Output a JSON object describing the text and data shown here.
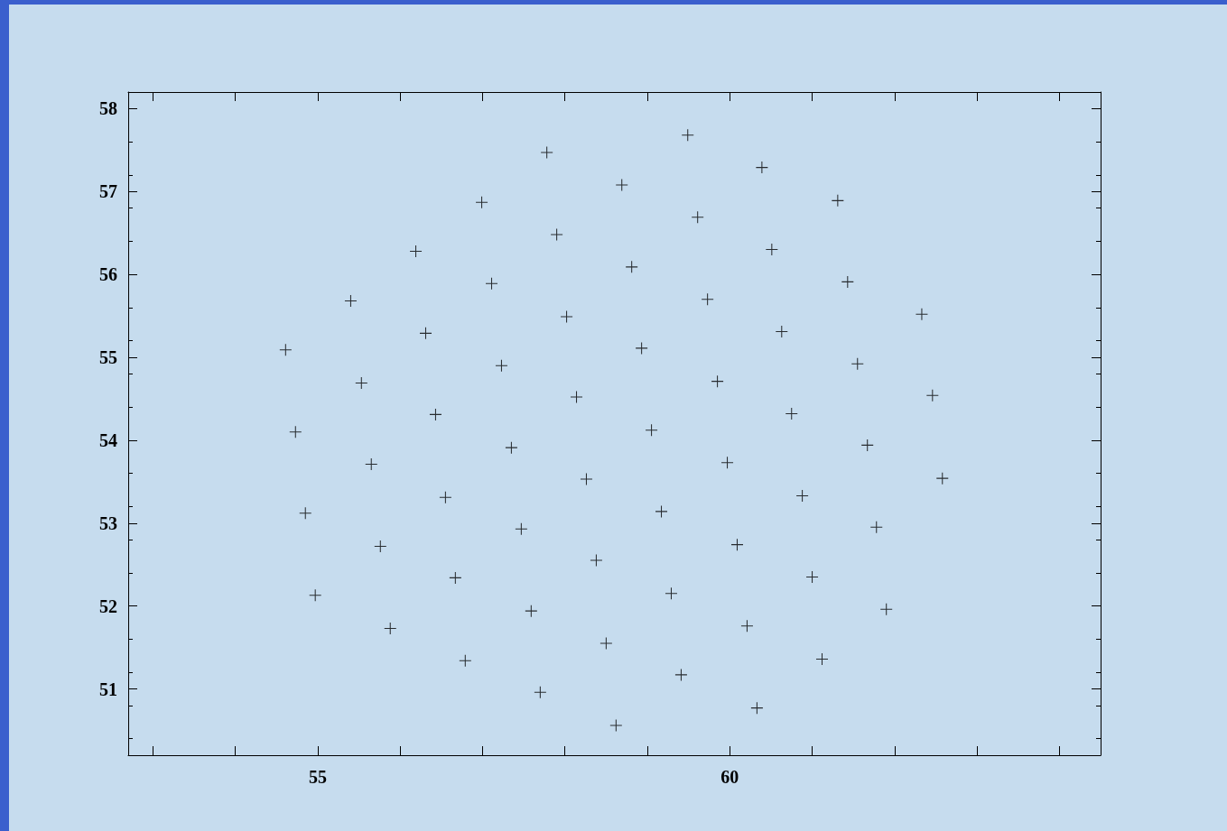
{
  "chart_data": {
    "type": "scatter",
    "marker": "cross",
    "xlim": [
      52.7,
      64.5
    ],
    "ylim": [
      50.2,
      58.2
    ],
    "xticks": [
      {
        "value": 53,
        "label": null
      },
      {
        "value": 54,
        "label": null
      },
      55,
      {
        "value": 56,
        "label": null
      },
      {
        "value": 57,
        "label": null
      },
      {
        "value": 58,
        "label": null
      },
      {
        "value": 59,
        "label": null
      },
      60,
      {
        "value": 61,
        "label": null
      },
      {
        "value": 62,
        "label": null
      },
      {
        "value": 63,
        "label": null
      },
      {
        "value": 64,
        "label": null
      }
    ],
    "yticks": [
      51,
      52,
      53,
      54,
      55,
      56,
      57,
      58
    ],
    "series": [
      {
        "color": "#000000",
        "x": [
          54.61,
          54.73,
          54.85,
          54.97,
          55.4,
          55.53,
          55.65,
          55.76,
          55.88,
          56.19,
          56.31,
          56.43,
          56.55,
          56.67,
          56.79,
          56.99,
          57.11,
          57.23,
          57.35,
          57.47,
          57.59,
          57.7,
          57.78,
          57.9,
          58.02,
          58.14,
          58.26,
          58.38,
          58.5,
          58.62,
          58.69,
          58.81,
          58.93,
          59.05,
          59.17,
          59.29,
          59.41,
          59.49,
          59.61,
          59.73,
          59.85,
          59.97,
          60.09,
          60.21,
          60.33,
          60.39,
          60.51,
          60.63,
          60.75,
          60.88,
          61.0,
          61.12,
          61.31,
          61.43,
          61.55,
          61.67,
          61.78,
          61.9,
          62.33,
          62.46,
          62.58
        ],
        "values": [
          55.09,
          54.1,
          53.12,
          52.13,
          55.68,
          54.69,
          53.71,
          52.72,
          51.73,
          56.28,
          55.29,
          54.31,
          53.31,
          52.34,
          51.34,
          56.87,
          55.89,
          54.9,
          53.91,
          52.93,
          51.94,
          50.96,
          57.47,
          56.48,
          55.49,
          54.52,
          53.53,
          52.55,
          51.55,
          50.56,
          57.08,
          56.09,
          55.11,
          54.12,
          53.14,
          52.15,
          51.17,
          57.68,
          56.69,
          55.7,
          54.71,
          53.73,
          52.74,
          51.76,
          50.77,
          57.29,
          56.3,
          55.31,
          54.32,
          53.33,
          52.35,
          51.36,
          56.89,
          55.91,
          54.92,
          53.94,
          52.95,
          51.96,
          55.52,
          54.54,
          53.54
        ]
      }
    ]
  }
}
